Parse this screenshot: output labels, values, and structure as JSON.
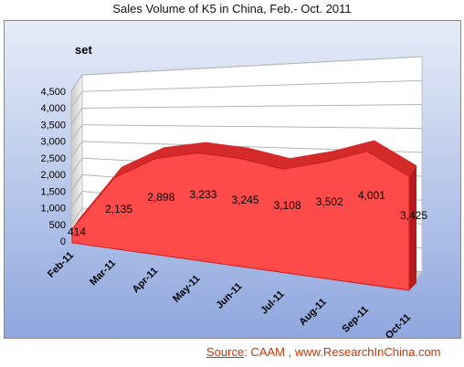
{
  "chart_data": {
    "type": "area",
    "title": "Sales Volume of K5 in China, Feb.- Oct. 2011",
    "ylabel": "set",
    "categories": [
      "Feb-11",
      "Mar-11",
      "Apr-11",
      "May-11",
      "Jun-11",
      "Jul-11",
      "Aug-11",
      "Sep-11",
      "Oct-11"
    ],
    "series": [
      {
        "values": [
          414,
          2135,
          2898,
          3233,
          3245,
          3108,
          3502,
          4001,
          3425
        ]
      }
    ],
    "data_labels": [
      "414",
      "2,135",
      "2,898",
      "3,233",
      "3,245",
      "3,108",
      "3,502",
      "4,001",
      "3,425"
    ],
    "y_ticks": [
      "0",
      "500",
      "1,000",
      "1,500",
      "2,000",
      "2,500",
      "3,000",
      "3,500",
      "4,000",
      "4,500"
    ],
    "ylim": [
      0,
      4500
    ],
    "grid": true,
    "style": "3d",
    "colors": {
      "area": "#ff4a4a",
      "area_edge": "#c81e1e",
      "background_top": "#e6ecf8",
      "background_bottom": "#8fa7de"
    }
  },
  "source": {
    "label": "Source",
    "rest": ": CAAM , www.ResearchInChina.com"
  }
}
